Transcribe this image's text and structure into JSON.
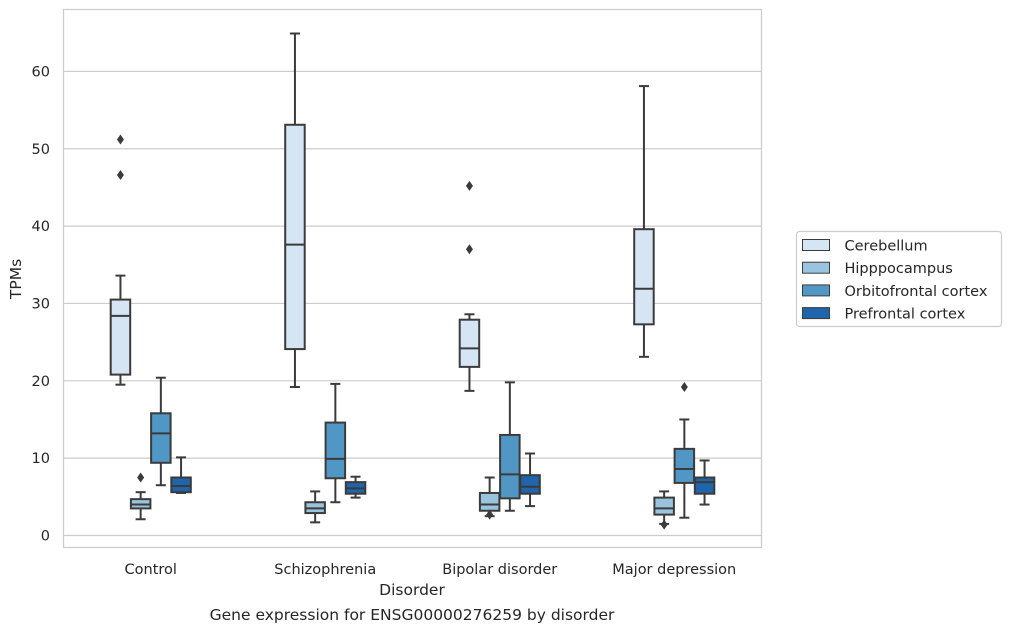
{
  "caption": "Gene expression for ENSG00000276259 by disorder",
  "chart_data": {
    "type": "boxplot",
    "xlabel": "Disorder",
    "ylabel": "TPMs",
    "ylim": [
      -1.5,
      68.5
    ],
    "yticks": [
      0,
      10,
      20,
      30,
      40,
      50,
      60
    ],
    "grid": "horizontal",
    "legend_position": "right",
    "categories": [
      "Control",
      "Schizophrenia",
      "Bipolar disorder",
      "Major depression"
    ],
    "series": [
      {
        "name": "Cerebellum",
        "color": "#d6e5f4",
        "boxes": [
          {
            "whislo": 19.5,
            "q1": 20.8,
            "med": 28.4,
            "q3": 30.5,
            "whishi": 33.6,
            "fliers": [
              46.6,
              51.2
            ]
          },
          {
            "whislo": 19.2,
            "q1": 24.1,
            "med": 37.6,
            "q3": 53.1,
            "whishi": 64.9,
            "fliers": []
          },
          {
            "whislo": 18.7,
            "q1": 21.8,
            "med": 24.2,
            "q3": 27.9,
            "whishi": 28.6,
            "fliers": [
              37.0,
              45.2
            ]
          },
          {
            "whislo": 23.1,
            "q1": 27.3,
            "med": 31.9,
            "q3": 39.6,
            "whishi": 58.1,
            "fliers": []
          }
        ]
      },
      {
        "name": "Hipppocampus",
        "color": "#9ac4de",
        "boxes": [
          {
            "whislo": 2.1,
            "q1": 3.5,
            "med": 4.0,
            "q3": 4.7,
            "whishi": 5.6,
            "fliers": [
              7.5
            ]
          },
          {
            "whislo": 1.7,
            "q1": 2.9,
            "med": 3.5,
            "q3": 4.3,
            "whishi": 5.7,
            "fliers": []
          },
          {
            "whislo": 2.5,
            "q1": 3.2,
            "med": 4.0,
            "q3": 5.5,
            "whishi": 7.5,
            "fliers": [
              2.7
            ]
          },
          {
            "whislo": 1.5,
            "q1": 2.7,
            "med": 3.5,
            "q3": 4.9,
            "whishi": 5.7,
            "fliers": [
              1.4
            ]
          }
        ]
      },
      {
        "name": "Orbitofrontal cortex",
        "color": "#5097c6",
        "boxes": [
          {
            "whislo": 6.5,
            "q1": 9.4,
            "med": 13.2,
            "q3": 15.8,
            "whishi": 20.4,
            "fliers": []
          },
          {
            "whislo": 4.3,
            "q1": 7.4,
            "med": 9.9,
            "q3": 14.6,
            "whishi": 19.6,
            "fliers": []
          },
          {
            "whislo": 3.2,
            "q1": 4.8,
            "med": 7.9,
            "q3": 13.0,
            "whishi": 19.8,
            "fliers": []
          },
          {
            "whislo": 2.3,
            "q1": 6.8,
            "med": 8.6,
            "q3": 11.2,
            "whishi": 15.0,
            "fliers": [
              19.2
            ]
          }
        ]
      },
      {
        "name": "Prefrontal cortex",
        "color": "#2065ab",
        "boxes": [
          {
            "whislo": 5.5,
            "q1": 5.6,
            "med": 6.4,
            "q3": 7.5,
            "whishi": 10.1,
            "fliers": []
          },
          {
            "whislo": 4.9,
            "q1": 5.4,
            "med": 6.1,
            "q3": 6.9,
            "whishi": 7.6,
            "fliers": []
          },
          {
            "whislo": 3.8,
            "q1": 5.4,
            "med": 6.3,
            "q3": 7.8,
            "whishi": 10.6,
            "fliers": []
          },
          {
            "whislo": 4.0,
            "q1": 5.4,
            "med": 6.9,
            "q3": 7.5,
            "whishi": 9.7,
            "fliers": []
          }
        ]
      }
    ]
  }
}
